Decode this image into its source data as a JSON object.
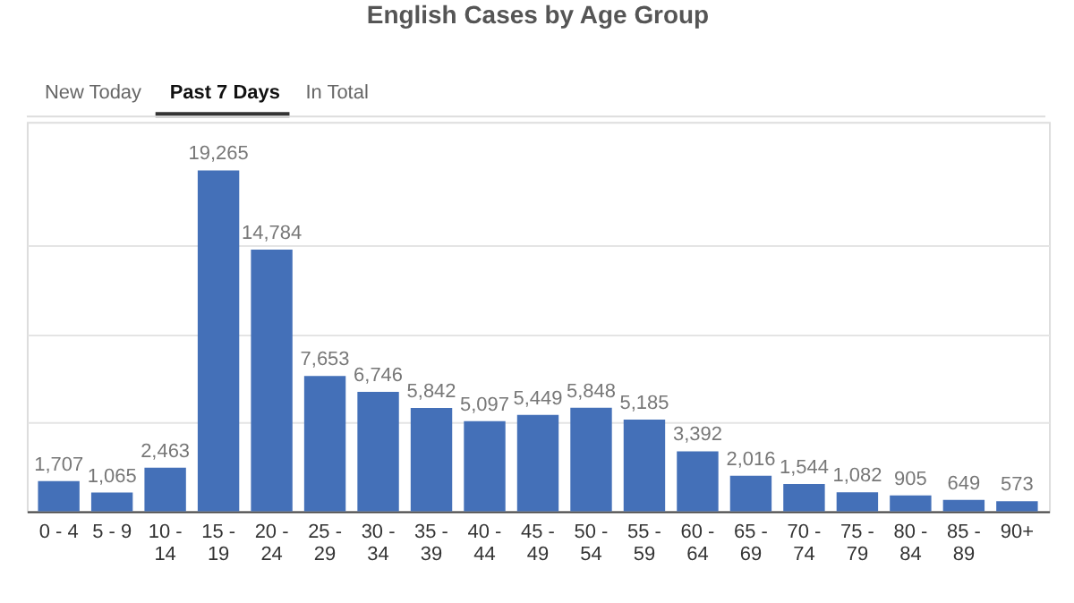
{
  "chart_data": {
    "type": "bar",
    "title": "English Cases by Age Group",
    "annotations": [
      "New Today",
      "Past 7 Days",
      "In Total"
    ],
    "categories": [
      "0 - 4",
      "5 - 9",
      "10 - 14",
      "15 - 19",
      "20 - 24",
      "25 - 29",
      "30 - 34",
      "35 - 39",
      "40 - 44",
      "45 - 49",
      "50 - 54",
      "55 - 59",
      "60 - 64",
      "65 - 69",
      "70 - 74",
      "75 - 79",
      "80 - 84",
      "85 - 89",
      "90+"
    ],
    "values": [
      1707,
      1065,
      2463,
      19265,
      14784,
      7653,
      6746,
      5842,
      5097,
      5449,
      5848,
      5185,
      3392,
      2016,
      1544,
      1082,
      905,
      649,
      573
    ],
    "color": "#4470b8",
    "value_labels": [
      "1,707",
      "1,065",
      "2,463",
      "19,265",
      "14,784",
      "7,653",
      "6,746",
      "5,842",
      "5,097",
      "5,449",
      "5,848",
      "5,185",
      "3,392",
      "2,016",
      "1,544",
      "1,082",
      "905",
      "649",
      "573"
    ],
    "ylim": [
      0,
      22000
    ],
    "yticks": [
      {
        "value": 0,
        "label": null
      },
      {
        "value": 5000,
        "label": null
      },
      {
        "value": 10000,
        "label": null
      },
      {
        "value": 15000,
        "label": null
      }
    ],
    "grid": "y",
    "tick_labels": "x"
  }
}
